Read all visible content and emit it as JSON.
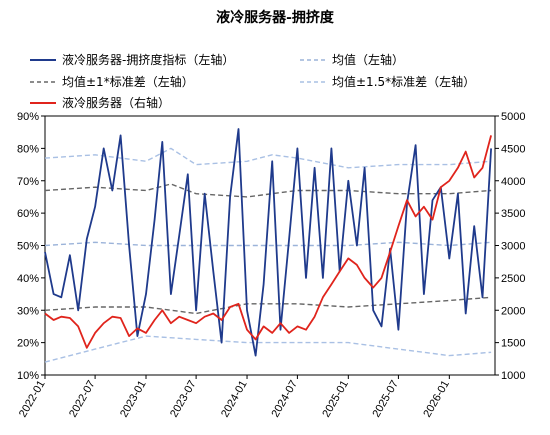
{
  "chart_data": {
    "type": "line",
    "title": "液冷服务器-拥挤度",
    "x_tick_labels": [
      "2022-01",
      "2022-07",
      "2023-01",
      "2023-07",
      "2024-01",
      "2024-07",
      "2025-01",
      "2025-07",
      "2026-01"
    ],
    "left_axis": {
      "range": [
        0.1,
        0.9
      ],
      "ticks": [
        "10%",
        "20%",
        "30%",
        "40%",
        "50%",
        "60%",
        "70%",
        "80%",
        "90%"
      ]
    },
    "right_axis": {
      "range": [
        1000,
        5000
      ],
      "ticks": [
        "1000",
        "1500",
        "2000",
        "2500",
        "3000",
        "3500",
        "4000",
        "4500",
        "5000"
      ]
    },
    "legend_placement": "top",
    "series": [
      {
        "name": "液冷服务器-拥挤度指标（左轴）",
        "axis": "left",
        "style": "solid",
        "color": "#1f3a8c",
        "points": [
          [
            "2022-01",
            0.48
          ],
          [
            "2022-02",
            0.35
          ],
          [
            "2022-03",
            0.34
          ],
          [
            "2022-04",
            0.47
          ],
          [
            "2022-05",
            0.3
          ],
          [
            "2022-06",
            0.52
          ],
          [
            "2022-07",
            0.62
          ],
          [
            "2022-08",
            0.8
          ],
          [
            "2022-09",
            0.67
          ],
          [
            "2022-10",
            0.84
          ],
          [
            "2022-11",
            0.5
          ],
          [
            "2022-12",
            0.22
          ],
          [
            "2023-01",
            0.35
          ],
          [
            "2023-02",
            0.58
          ],
          [
            "2023-03",
            0.82
          ],
          [
            "2023-04",
            0.35
          ],
          [
            "2023-05",
            0.53
          ],
          [
            "2023-06",
            0.72
          ],
          [
            "2023-07",
            0.3
          ],
          [
            "2023-08",
            0.66
          ],
          [
            "2023-09",
            0.42
          ],
          [
            "2023-10",
            0.2
          ],
          [
            "2023-11",
            0.65
          ],
          [
            "2023-12",
            0.86
          ],
          [
            "2024-01",
            0.3
          ],
          [
            "2024-02",
            0.16
          ],
          [
            "2024-03",
            0.38
          ],
          [
            "2024-04",
            0.76
          ],
          [
            "2024-05",
            0.24
          ],
          [
            "2024-06",
            0.52
          ],
          [
            "2024-07",
            0.8
          ],
          [
            "2024-08",
            0.4
          ],
          [
            "2024-09",
            0.74
          ],
          [
            "2024-10",
            0.4
          ],
          [
            "2024-11",
            0.8
          ],
          [
            "2024-12",
            0.42
          ],
          [
            "2025-01",
            0.7
          ],
          [
            "2025-02",
            0.5
          ],
          [
            "2025-03",
            0.74
          ],
          [
            "2025-04",
            0.3
          ],
          [
            "2025-05",
            0.25
          ],
          [
            "2025-06",
            0.49
          ],
          [
            "2025-07",
            0.24
          ],
          [
            "2025-08",
            0.63
          ],
          [
            "2025-09",
            0.81
          ],
          [
            "2025-10",
            0.35
          ],
          [
            "2025-11",
            0.64
          ],
          [
            "2025-12",
            0.68
          ],
          [
            "2026-01",
            0.46
          ],
          [
            "2026-02",
            0.66
          ],
          [
            "2026-03",
            0.29
          ],
          [
            "2026-04",
            0.56
          ],
          [
            "2026-05",
            0.34
          ],
          [
            "2026-06",
            0.8
          ]
        ]
      },
      {
        "name": "均值（左轴）",
        "axis": "left",
        "style": "dashed",
        "color": "#9bb3d9",
        "points": [
          [
            "2022-01",
            0.5
          ],
          [
            "2022-07",
            0.51
          ],
          [
            "2023-01",
            0.5
          ],
          [
            "2023-07",
            0.5
          ],
          [
            "2024-01",
            0.5
          ],
          [
            "2024-07",
            0.5
          ],
          [
            "2025-01",
            0.5
          ],
          [
            "2025-07",
            0.51
          ],
          [
            "2026-01",
            0.5
          ],
          [
            "2026-06",
            0.51
          ]
        ]
      },
      {
        "name": "均值±1*标准差（左轴）",
        "axis": "left",
        "style": "dashed",
        "color": "#666666",
        "points": [
          [
            "2022-01",
            0.67
          ],
          [
            "2022-07",
            0.68
          ],
          [
            "2023-01",
            0.67
          ],
          [
            "2023-04",
            0.69
          ],
          [
            "2023-07",
            0.66
          ],
          [
            "2024-01",
            0.65
          ],
          [
            "2024-04",
            0.66
          ],
          [
            "2024-07",
            0.67
          ],
          [
            "2025-01",
            0.67
          ],
          [
            "2025-07",
            0.66
          ],
          [
            "2026-01",
            0.66
          ],
          [
            "2026-06",
            0.67
          ]
        ],
        "points_lower": [
          [
            "2022-01",
            0.3
          ],
          [
            "2022-07",
            0.31
          ],
          [
            "2023-01",
            0.31
          ],
          [
            "2023-07",
            0.29
          ],
          [
            "2024-01",
            0.32
          ],
          [
            "2024-07",
            0.32
          ],
          [
            "2025-01",
            0.31
          ],
          [
            "2025-07",
            0.32
          ],
          [
            "2026-01",
            0.33
          ],
          [
            "2026-06",
            0.34
          ]
        ]
      },
      {
        "name": "均值±1.5*标准差（左轴）",
        "axis": "left",
        "style": "dashed",
        "color": "#a9c0e4",
        "points": [
          [
            "2022-01",
            0.77
          ],
          [
            "2022-07",
            0.78
          ],
          [
            "2023-01",
            0.76
          ],
          [
            "2023-04",
            0.8
          ],
          [
            "2023-07",
            0.75
          ],
          [
            "2024-01",
            0.76
          ],
          [
            "2024-04",
            0.78
          ],
          [
            "2024-07",
            0.77
          ],
          [
            "2025-01",
            0.74
          ],
          [
            "2025-07",
            0.75
          ],
          [
            "2026-01",
            0.75
          ],
          [
            "2026-06",
            0.76
          ]
        ],
        "points_lower": [
          [
            "2022-01",
            0.14
          ],
          [
            "2022-07",
            0.18
          ],
          [
            "2023-01",
            0.22
          ],
          [
            "2023-07",
            0.21
          ],
          [
            "2024-01",
            0.2
          ],
          [
            "2024-07",
            0.2
          ],
          [
            "2025-01",
            0.2
          ],
          [
            "2025-07",
            0.18
          ],
          [
            "2026-01",
            0.16
          ],
          [
            "2026-06",
            0.17
          ]
        ]
      },
      {
        "name": "液冷服务器（右轴）",
        "axis": "right",
        "style": "solid",
        "color": "#e0241c",
        "points": [
          [
            "2022-01",
            1950
          ],
          [
            "2022-02",
            1850
          ],
          [
            "2022-03",
            1900
          ],
          [
            "2022-04",
            1880
          ],
          [
            "2022-05",
            1750
          ],
          [
            "2022-06",
            1420
          ],
          [
            "2022-07",
            1650
          ],
          [
            "2022-08",
            1800
          ],
          [
            "2022-09",
            1900
          ],
          [
            "2022-10",
            1880
          ],
          [
            "2022-11",
            1600
          ],
          [
            "2022-12",
            1720
          ],
          [
            "2023-01",
            1650
          ],
          [
            "2023-02",
            1850
          ],
          [
            "2023-03",
            2000
          ],
          [
            "2023-04",
            1800
          ],
          [
            "2023-05",
            1900
          ],
          [
            "2023-06",
            1850
          ],
          [
            "2023-07",
            1800
          ],
          [
            "2023-08",
            1900
          ],
          [
            "2023-09",
            1950
          ],
          [
            "2023-10",
            1850
          ],
          [
            "2023-11",
            2050
          ],
          [
            "2023-12",
            2100
          ],
          [
            "2024-01",
            1700
          ],
          [
            "2024-02",
            1550
          ],
          [
            "2024-03",
            1750
          ],
          [
            "2024-04",
            1650
          ],
          [
            "2024-05",
            1800
          ],
          [
            "2024-06",
            1650
          ],
          [
            "2024-07",
            1750
          ],
          [
            "2024-08",
            1700
          ],
          [
            "2024-09",
            1900
          ],
          [
            "2024-10",
            2200
          ],
          [
            "2024-11",
            2400
          ],
          [
            "2024-12",
            2600
          ],
          [
            "2025-01",
            2800
          ],
          [
            "2025-02",
            2700
          ],
          [
            "2025-03",
            2500
          ],
          [
            "2025-04",
            2350
          ],
          [
            "2025-05",
            2500
          ],
          [
            "2025-06",
            2900
          ],
          [
            "2025-07",
            3300
          ],
          [
            "2025-08",
            3700
          ],
          [
            "2025-09",
            3450
          ],
          [
            "2025-10",
            3600
          ],
          [
            "2025-11",
            3400
          ],
          [
            "2025-12",
            3900
          ],
          [
            "2026-01",
            4000
          ],
          [
            "2026-02",
            4200
          ],
          [
            "2026-03",
            4450
          ],
          [
            "2026-04",
            4050
          ],
          [
            "2026-05",
            4200
          ],
          [
            "2026-06",
            4700
          ]
        ]
      }
    ]
  }
}
